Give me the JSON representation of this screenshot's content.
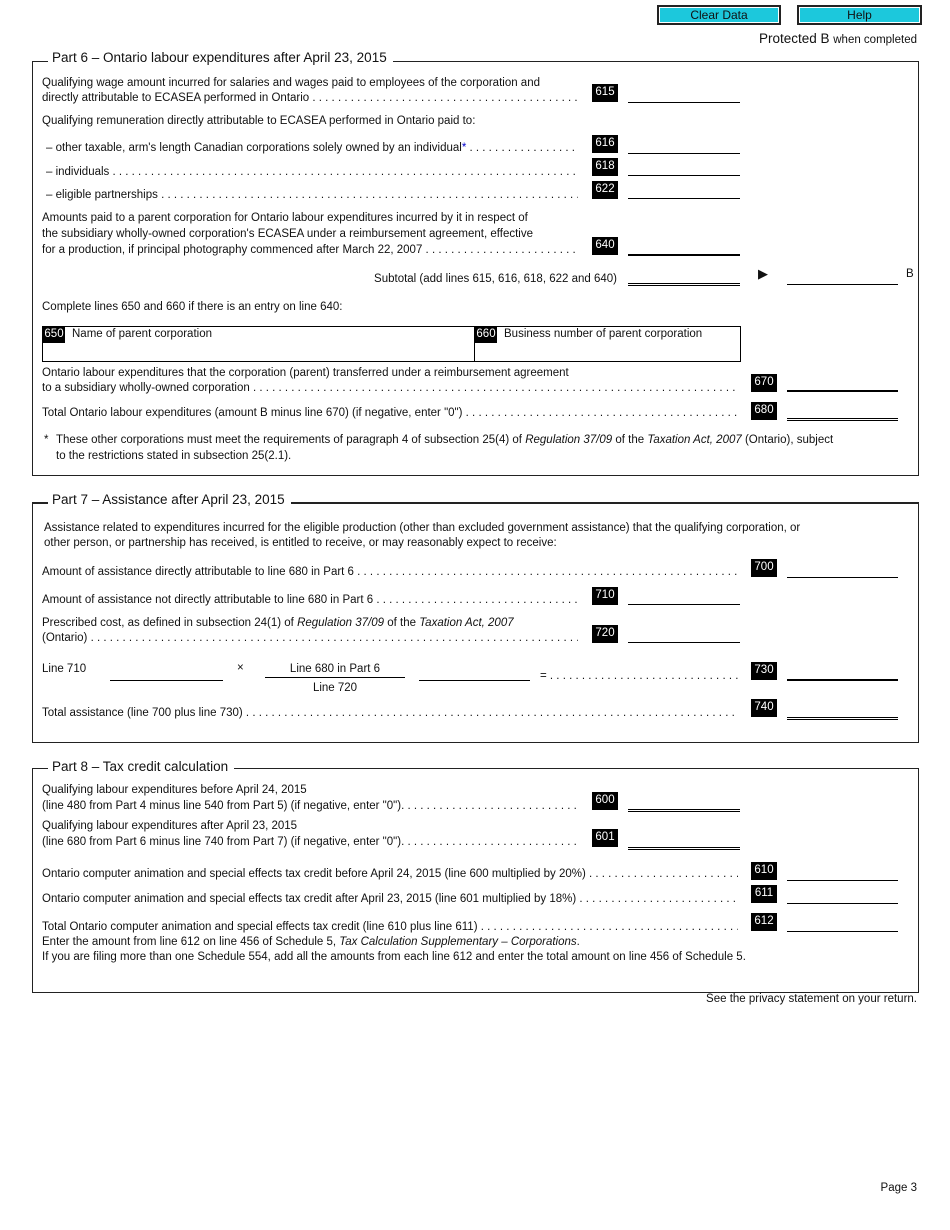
{
  "header": {
    "clear_label": "Clear Data",
    "help_label": "Help",
    "protected": "Protected B",
    "protected_suffix": "when completed"
  },
  "part6": {
    "title": "Part 6 – Ontario labour expenditures after April 23, 2015",
    "l615a": "Qualifying wage amount incurred for salaries and wages paid to employees of the corporation and",
    "l615b": "directly attributable to ECASEA performed in Ontario",
    "remun": "Qualifying remuneration directly attributable to ECASEA performed in Ontario paid to:",
    "l616": "–  other taxable, arm's length Canadian corporations solely owned by an individual",
    "star": "*",
    "l618": "–  individuals",
    "l622": "–  eligible partnerships",
    "l640a": "Amounts paid to a parent corporation for Ontario labour expenditures incurred by it in respect of",
    "l640b": "the subsidiary wholly-owned corporation's ECASEA under a reimbursement agreement, effective",
    "l640c": "for a production, if principal photography commenced after March 22, 2007",
    "subtotal": "Subtotal (add lines 615, 616, 618, 622 and 640)",
    "arrow": "▶",
    "B": "B",
    "complete": "Complete lines 650 and 660 if there is an entry on line 640:",
    "l650": "Name of parent corporation",
    "l660": "Business number of parent corporation",
    "l670a": "Ontario labour expenditures that the corporation (parent) transferred under a reimbursement agreement",
    "l670b": "to a subsidiary wholly-owned corporation",
    "l680": "Total Ontario labour expenditures (amount B minus line 670) (if negative, enter \"0\")",
    "note_star": "*",
    "note1a": "These other corporations must meet the requirements of paragraph 4 of subsection 25(4) of ",
    "note1b": "Regulation 37/09",
    "note1c": " of the ",
    "note1d": "Taxation Act, 2007",
    "note1e": " (Ontario), subject",
    "note2": "to the restrictions stated in subsection 25(2.1).",
    "codes": {
      "c615": "615",
      "c616": "616",
      "c618": "618",
      "c622": "622",
      "c640": "640",
      "c650": "650",
      "c660": "660",
      "c670": "670",
      "c680": "680"
    }
  },
  "part7": {
    "title": "Part 7 – Assistance after April 23, 2015",
    "introa": "Assistance related to expenditures incurred for the eligible production (other than excluded government assistance) that the qualifying corporation, or",
    "introb": "other person, or partnership has received, is entitled to receive, or may reasonably expect to receive:",
    "l700": "Amount of assistance directly attributable to line 680 in Part 6",
    "l710": "Amount of assistance not directly attributable to line 680 in Part 6",
    "l720a1": "Prescribed cost, as defined in subsection 24(1) of ",
    "l720a2": "Regulation 37/09",
    "l720a3": " of the ",
    "l720a4": "Taxation Act, 2007",
    "l720b": "(Ontario)",
    "line710": "Line 710",
    "times": "×",
    "num": "Line 680 in Part 6",
    "den": "Line 720",
    "eq": "=",
    "l740": "Total assistance (line 700 plus line 730)",
    "codes": {
      "c700": "700",
      "c710": "710",
      "c720": "720",
      "c730": "730",
      "c740": "740"
    }
  },
  "part8": {
    "title": "Part 8 – Tax credit calculation",
    "l600a": "Qualifying labour expenditures before April 24, 2015",
    "l600b": "(line 480 from Part 4 minus line 540 from Part 5) (if negative, enter \"0\").",
    "l601a": "Qualifying labour expenditures after April 23, 2015",
    "l601b": "(line 680 from Part 6 minus line 740 from Part 7) (if negative, enter \"0\").",
    "l610": "Ontario computer animation and special effects tax credit before April 24, 2015 (line 600 multiplied by 20%)",
    "l611": "Ontario computer animation and special effects tax credit after April 23, 2015 (line 601 multiplied by 18%)",
    "l612": "Total Ontario computer animation and special effects tax credit (line 610 plus line 611)",
    "enter1": "Enter the amount from line 612 on line 456 of Schedule 5, ",
    "enter2": "Tax Calculation Supplementary – Corporations",
    "enter3": ".",
    "filing": "If you are filing more than one Schedule 554, add all the amounts from each line 612 and enter the total amount on line 456 of Schedule 5.",
    "codes": {
      "c600": "600",
      "c601": "601",
      "c610": "610",
      "c611": "611",
      "c612": "612"
    }
  },
  "footer": {
    "privacy": "See the privacy statement on your return.",
    "page": "Page 3"
  },
  "colors": {
    "button": "#1cc8dc",
    "code_bg": "#000000",
    "asterisk": "#0000cc"
  }
}
